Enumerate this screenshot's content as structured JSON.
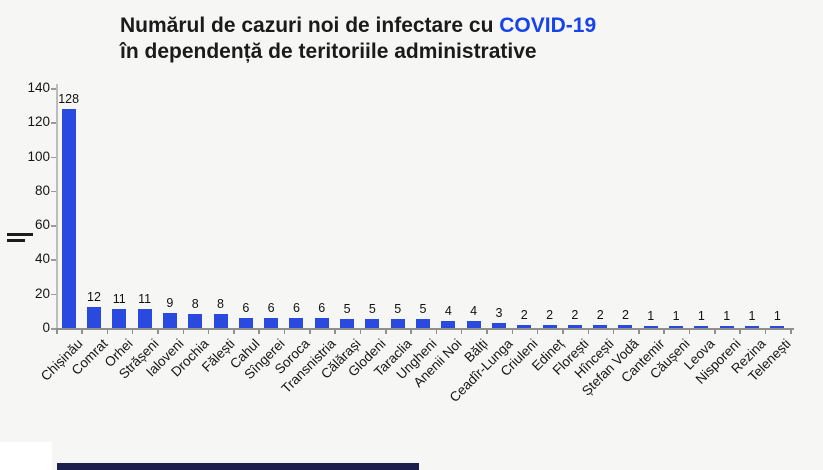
{
  "title": {
    "line1_black": "Numărul de cazuri noi de infectare cu ",
    "line1_highlight": "COVID-19",
    "line2": "în dependență de teritoriile administrative"
  },
  "colors": {
    "bar": "#2a49df",
    "title_highlight": "#1743e8",
    "background": "#f6f6f4",
    "axis": "#8f8f8f",
    "bottom_bar": "#1b1f4e"
  },
  "chart_data": {
    "type": "bar",
    "title": "Numărul de cazuri noi de infectare cu COVID-19 în dependență de teritoriile administrative",
    "categories": [
      "Chișinău",
      "Comrat",
      "Orhei",
      "Strășeni",
      "Ialoveni",
      "Drochia",
      "Fălești",
      "Cahul",
      "Sîngerei",
      "Soroca",
      "Transnistria",
      "Călărași",
      "Glodeni",
      "Taraclia",
      "Ungheni",
      "Anenii Noi",
      "Bălți",
      "Ceadîr-Lunga",
      "Criuleni",
      "Edineț",
      "Florești",
      "Hîncești",
      "Ștefan Vodă",
      "Cantemir",
      "Căușeni",
      "Leova",
      "Nisporeni",
      "Rezina",
      "Telenești"
    ],
    "values": [
      128,
      12,
      11,
      11,
      9,
      8,
      8,
      6,
      6,
      6,
      6,
      5,
      5,
      5,
      5,
      4,
      4,
      3,
      2,
      2,
      2,
      2,
      2,
      1,
      1,
      1,
      1,
      1,
      1
    ],
    "xlabel": "",
    "ylabel": "",
    "ylim": [
      0,
      140
    ],
    "yticks": [
      0,
      20,
      40,
      60,
      80,
      100,
      120,
      140
    ],
    "grid": false,
    "legend": null,
    "bar_color": "#2a49df",
    "value_labels_shown": true,
    "x_tick_rotation_deg": 45
  }
}
